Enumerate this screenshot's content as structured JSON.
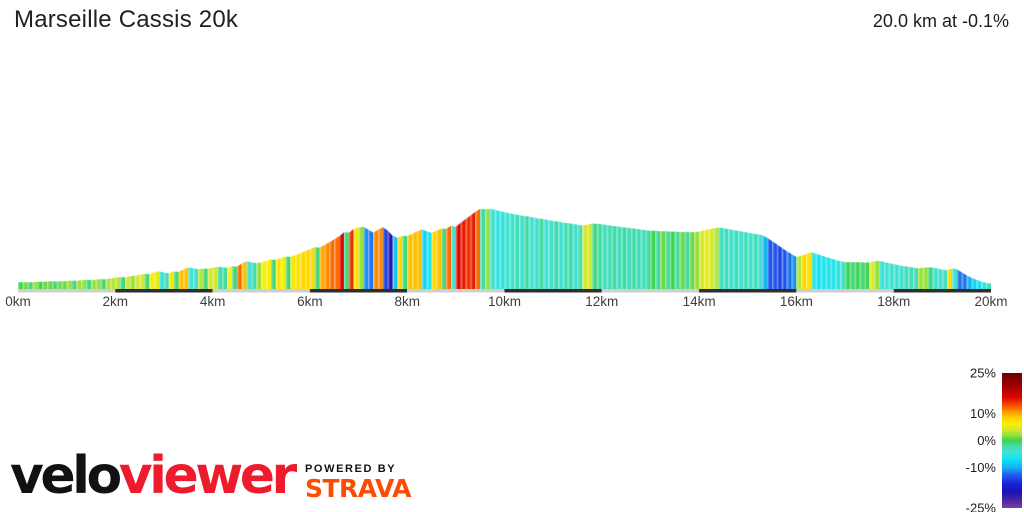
{
  "header": {
    "title": "Marseille Cassis 20k",
    "summary": "20.0 km at -0.1%"
  },
  "chart_data": {
    "type": "area",
    "title": "Marseille Cassis 20k",
    "x_unit": "km",
    "x_range": [
      0,
      20
    ],
    "x_tick_values": [
      0,
      2,
      4,
      6,
      8,
      10,
      12,
      14,
      16,
      18,
      20
    ],
    "x_tick_labels": [
      "0km",
      "2km",
      "4km",
      "6km",
      "8km",
      "10km",
      "12km",
      "14km",
      "16km",
      "18km",
      "20km"
    ],
    "elevation_step_km": 0.1,
    "elevations_m": [
      28,
      28,
      29,
      28,
      30,
      30,
      31,
      32,
      31,
      32,
      33,
      35,
      34,
      36,
      38,
      37,
      39,
      41,
      40,
      43,
      46,
      49,
      48,
      52,
      54,
      58,
      62,
      61,
      67,
      72,
      67,
      64,
      71,
      70,
      79,
      88,
      84,
      80,
      83,
      82,
      86,
      90,
      88,
      86,
      92,
      91,
      103,
      112,
      108,
      105,
      107,
      113,
      119,
      118,
      125,
      131,
      130,
      137,
      144,
      152,
      160,
      168,
      167,
      177,
      188,
      200,
      212,
      228,
      227,
      241,
      248,
      250,
      239,
      227,
      238,
      249,
      235,
      215,
      206,
      214,
      213,
      222,
      231,
      240,
      232,
      226,
      234,
      243,
      242,
      254,
      250,
      266,
      281,
      295,
      310,
      322,
      320,
      322,
      318,
      313,
      308,
      304,
      300,
      297,
      293,
      291,
      287,
      283,
      281,
      277,
      273,
      271,
      267,
      264,
      262,
      258,
      255,
      259,
      263,
      262,
      260,
      257,
      254,
      252,
      249,
      247,
      244,
      242,
      239,
      236,
      234,
      234,
      232,
      233,
      231,
      231,
      229,
      230,
      228,
      229,
      231,
      235,
      240,
      244,
      247,
      244,
      241,
      237,
      234,
      230,
      227,
      223,
      220,
      216,
      206,
      193,
      180,
      166,
      153,
      141,
      130,
      133,
      141,
      148,
      143,
      136,
      130,
      124,
      118,
      113,
      109,
      109,
      108,
      108,
      107,
      107,
      112,
      114,
      109,
      105,
      101,
      97,
      93,
      90,
      87,
      84,
      86,
      88,
      87,
      83,
      79,
      76,
      84,
      80,
      68,
      56,
      46,
      38,
      31,
      26,
      23
    ],
    "y_range_m": [
      0,
      340
    ],
    "color_by": "gradient_percent",
    "gradient_colormap": [
      [
        25,
        "#690003"
      ],
      [
        20,
        "#a30000"
      ],
      [
        16,
        "#dd0600"
      ],
      [
        13,
        "#f84a00"
      ],
      [
        10.5,
        "#ff9d00"
      ],
      [
        8,
        "#ffd800"
      ],
      [
        6,
        "#f9ee00"
      ],
      [
        4,
        "#d3e830"
      ],
      [
        2,
        "#97e13d"
      ],
      [
        0,
        "#3ed44d"
      ],
      [
        -2,
        "#43dba4"
      ],
      [
        -4.5,
        "#3fe2da"
      ],
      [
        -7,
        "#0fe2f8"
      ],
      [
        -10,
        "#17b1f2"
      ],
      [
        -13,
        "#2156eb"
      ],
      [
        -16,
        "#1722d8"
      ],
      [
        -19,
        "#1b10b8"
      ],
      [
        -22,
        "#4722a6"
      ],
      [
        -25,
        "#7b3fa2"
      ]
    ],
    "baseline_colors": {
      "light": "#cfcfcf",
      "dark": "#2e2e2e"
    },
    "axis_label_color": "#3d3d3d",
    "grid": "off",
    "legend_position": "bottom-right"
  },
  "legend": {
    "ticks": [
      {
        "label": "25%",
        "value": 25
      },
      {
        "label": "10%",
        "value": 10
      },
      {
        "label": "0%",
        "value": 0
      },
      {
        "label": "-10%",
        "value": -10
      },
      {
        "label": "-25%",
        "value": -25
      }
    ]
  },
  "footer": {
    "brand_black": "velo",
    "brand_red": "viewer",
    "powered_by": "POWERED BY",
    "strava": "STRAVA",
    "colors": {
      "brand_red": "#ee1b2d",
      "strava_orange": "#fc4c02",
      "brand_black": "#111111"
    }
  }
}
